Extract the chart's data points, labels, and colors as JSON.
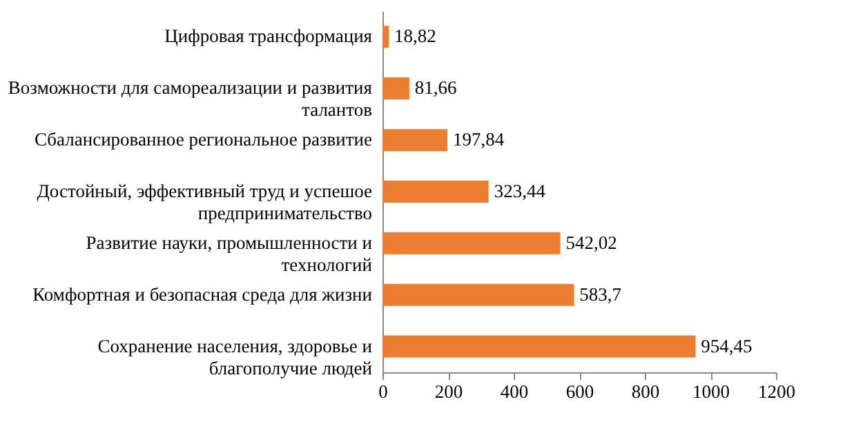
{
  "chart_data": {
    "type": "bar",
    "orientation": "horizontal",
    "categories": [
      "Цифровая трансформация",
      "Возможности для самореализации и развития талантов",
      "Сбалансированное региональное развитие",
      "Достойный, эффективный труд и успешое предпринимательство",
      "Развитие науки, промышленности и технологий",
      "Комфортная и безопасная среда для жизни",
      "Сохранение населения, здоровье и благополучие людей"
    ],
    "values": [
      18.82,
      81.66,
      197.84,
      323.44,
      542.02,
      583.7,
      954.45
    ],
    "value_labels": [
      "18,82",
      "81,66",
      "197,84",
      "323,44",
      "542,02",
      "583,7",
      "954,45"
    ],
    "color": "#ed7d31",
    "xlim": [
      0,
      1200
    ],
    "xticks": [
      0,
      200,
      400,
      600,
      800,
      1000,
      1200
    ],
    "grid": false
  }
}
